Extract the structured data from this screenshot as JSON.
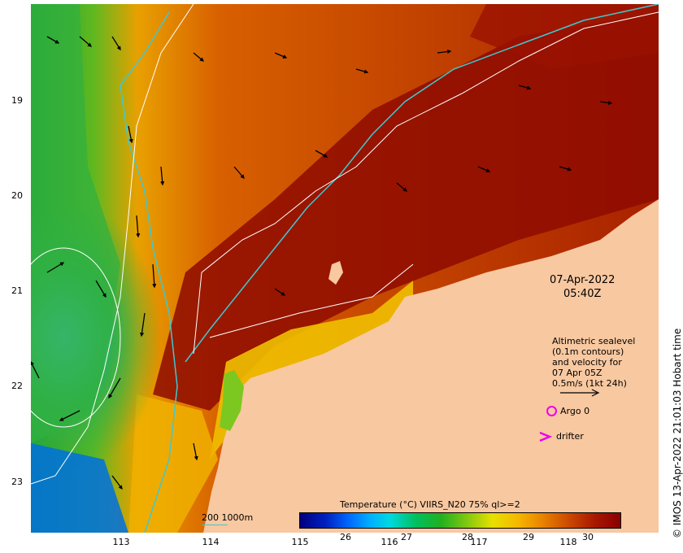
{
  "map": {
    "y_ticks": [
      "19",
      "20",
      "21",
      "22",
      "23"
    ],
    "x_ticks": [
      "113",
      "114",
      "115",
      "116",
      "117",
      "118"
    ],
    "timestamp_date": "07-Apr-2022",
    "timestamp_time": "05:40Z",
    "legend": {
      "line1": "Altimetric sealevel",
      "line2": "(0.1m contours)",
      "line3": "and velocity for",
      "line4": "07 Apr 05Z",
      "line5": "0.5m/s (1kt 24h)",
      "argo_label": "Argo 0",
      "drifter_label": "drifter",
      "argo_color": "#ee00ee",
      "drifter_color": "#ee00ee"
    },
    "bathymetry_label": "200  1000m",
    "bathymetry_color": "#40c8d0",
    "land_color": "#f8c8a0",
    "colorbar": {
      "title": "Temperature (°C) VIIRS_N20 75% ql>=2",
      "ticks": [
        "26",
        "27",
        "28",
        "29",
        "30"
      ]
    },
    "copyright": "© IMOS 13-Apr-2022 21:01:03 Hobart time"
  }
}
